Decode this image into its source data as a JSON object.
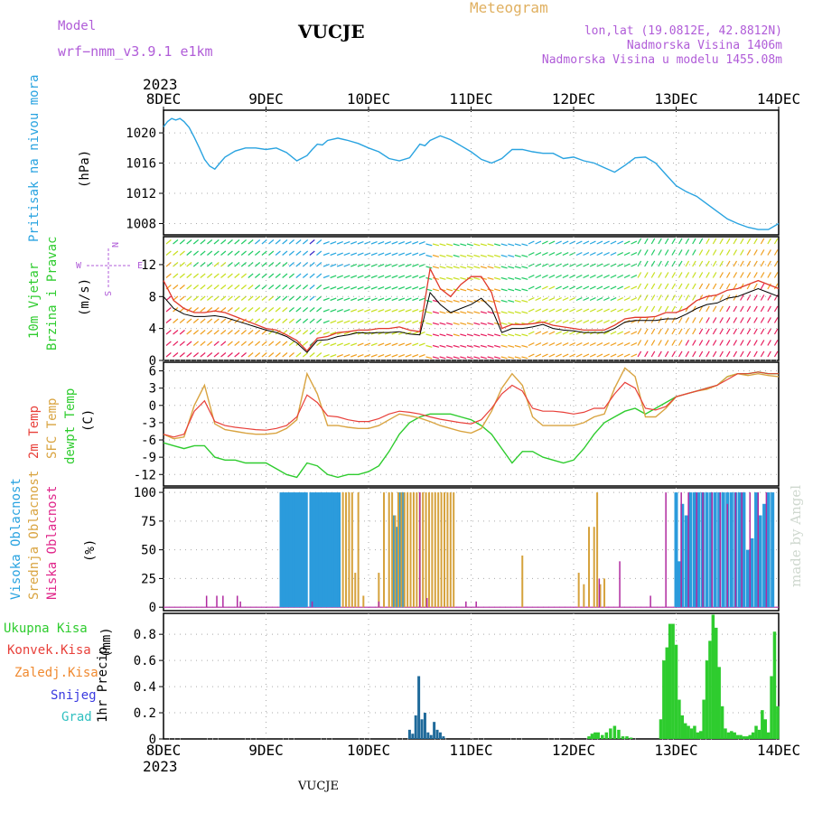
{
  "header": {
    "model_label": "Model",
    "model_name": "wrf−nmm_v3.9.1  e1km",
    "station": "VUCJE",
    "product": "Meteogram",
    "coords": "lon,lat (19.0812E, 42.8812N)",
    "altitude": "Nadmorska Visina 1406m",
    "model_altitude": "Nadmorska Visina u modelu 1455.08m",
    "footer_station": "VUCJE",
    "watermark": "made by Angel"
  },
  "time_axis": {
    "year": "2023",
    "ticks": [
      "8DEC",
      "9DEC",
      "10DEC",
      "11DEC",
      "12DEC",
      "13DEC",
      "14DEC"
    ]
  },
  "colors": {
    "pressure": "#29a3e0",
    "wind_speed": "#000000",
    "wind_gust": "#e0382b",
    "temp2m": "#e8403a",
    "sfc_temp": "#d9a441",
    "dewpoint": "#2ecc2e",
    "cloud_high": "#2b9bdc",
    "cloud_mid": "#d6a23c",
    "cloud_low": "#b02aa0",
    "precip_total": "#2ecc2e",
    "precip_conv": "#e8403a",
    "precip_frz": "#f08a30",
    "snow": "#3a3ae0",
    "graupel": "#30c0c0",
    "precip_dark": "#1f6a9a"
  },
  "chart_data": [
    {
      "type": "line",
      "panel": "pressure",
      "ylabel": "Pritisak na nivou mora",
      "unit": "(hPa)",
      "yticks": [
        1008,
        1012,
        1016,
        1020
      ],
      "ylim": [
        1006.5,
        1023
      ],
      "x_days": [
        0,
        0.04,
        0.08,
        0.12,
        0.16,
        0.2,
        0.25,
        0.3,
        0.35,
        0.4,
        0.45,
        0.5,
        0.55,
        0.6,
        0.7,
        0.8,
        0.9,
        1.0,
        1.1,
        1.2,
        1.3,
        1.4,
        1.45,
        1.5,
        1.55,
        1.6,
        1.7,
        1.8,
        1.9,
        2.0,
        2.1,
        2.2,
        2.3,
        2.4,
        2.5,
        2.55,
        2.6,
        2.7,
        2.8,
        2.9,
        3.0,
        3.05,
        3.1,
        3.2,
        3.3,
        3.4,
        3.5,
        3.6,
        3.7,
        3.8,
        3.9,
        4.0,
        4.1,
        4.2,
        4.3,
        4.4,
        4.5,
        4.6,
        4.7,
        4.8,
        4.9,
        5.0,
        5.1,
        5.2,
        5.3,
        5.4,
        5.5,
        5.6,
        5.7,
        5.8,
        5.9,
        6.0
      ],
      "values": [
        1020.8,
        1021.5,
        1021.9,
        1021.7,
        1021.9,
        1021.5,
        1020.7,
        1019.4,
        1018.0,
        1016.5,
        1015.6,
        1015.2,
        1016.0,
        1016.8,
        1017.6,
        1018.0,
        1018.0,
        1017.8,
        1018.0,
        1017.4,
        1016.3,
        1017.0,
        1017.8,
        1018.5,
        1018.4,
        1019.0,
        1019.3,
        1019.0,
        1018.6,
        1018.0,
        1017.5,
        1016.6,
        1016.3,
        1016.7,
        1018.5,
        1018.3,
        1019.0,
        1019.6,
        1019.1,
        1018.3,
        1017.5,
        1017.0,
        1016.5,
        1016.0,
        1016.6,
        1017.8,
        1017.8,
        1017.5,
        1017.3,
        1017.3,
        1016.6,
        1016.8,
        1016.3,
        1016.0,
        1015.4,
        1014.8,
        1015.7,
        1016.7,
        1016.8,
        1016.0,
        1014.5,
        1013.0,
        1012.2,
        1011.6,
        1010.6,
        1009.6,
        1008.6,
        1008.0,
        1007.5,
        1007.2,
        1007.2,
        1008.0
      ]
    },
    {
      "type": "line",
      "panel": "wind",
      "ylabel_line1": "10m Vjetar",
      "ylabel_line2": "Brzina i Pravac",
      "unit": "(m/s)",
      "compass": [
        "N",
        "E",
        "W",
        "S"
      ],
      "yticks": [
        0,
        4,
        8,
        12
      ],
      "ylim": [
        0,
        15.5
      ],
      "x_days": [
        0,
        0.1,
        0.2,
        0.3,
        0.4,
        0.5,
        0.6,
        0.7,
        0.8,
        0.9,
        1.0,
        1.1,
        1.2,
        1.3,
        1.4,
        1.5,
        1.6,
        1.7,
        1.8,
        1.9,
        2.0,
        2.1,
        2.2,
        2.3,
        2.4,
        2.5,
        2.6,
        2.7,
        2.8,
        2.9,
        3.0,
        3.1,
        3.2,
        3.3,
        3.4,
        3.5,
        3.6,
        3.7,
        3.8,
        3.9,
        4.0,
        4.1,
        4.2,
        4.3,
        4.4,
        4.5,
        4.6,
        4.7,
        4.8,
        4.9,
        5.0,
        5.1,
        5.2,
        5.3,
        5.4,
        5.5,
        5.6,
        5.7,
        5.8,
        5.9,
        6.0
      ],
      "series": [
        {
          "name": "speed",
          "values": [
            8.0,
            6.5,
            5.8,
            5.5,
            5.5,
            5.6,
            5.4,
            5.0,
            4.6,
            4.2,
            3.8,
            3.5,
            3.0,
            2.2,
            1.0,
            2.5,
            2.6,
            3.0,
            3.2,
            3.5,
            3.4,
            3.5,
            3.5,
            3.6,
            3.3,
            3.2,
            8.5,
            7.0,
            6.0,
            6.5,
            7.0,
            7.8,
            6.5,
            3.5,
            4.0,
            4.0,
            4.2,
            4.5,
            4.0,
            3.8,
            3.7,
            3.5,
            3.5,
            3.5,
            4.0,
            4.8,
            5.0,
            5.0,
            5.0,
            5.2,
            5.2,
            5.8,
            6.5,
            7.0,
            7.2,
            7.8,
            8.0,
            8.5,
            9.0,
            8.5,
            8.0
          ]
        },
        {
          "name": "gust",
          "values": [
            10.0,
            7.5,
            6.5,
            6.0,
            6.0,
            6.2,
            6.0,
            5.5,
            5.0,
            4.5,
            4.0,
            3.8,
            3.2,
            2.5,
            1.2,
            2.8,
            3.0,
            3.5,
            3.6,
            3.8,
            3.8,
            4.0,
            4.0,
            4.2,
            3.8,
            3.6,
            11.5,
            9.0,
            8.0,
            9.5,
            10.5,
            10.5,
            8.5,
            4.0,
            4.5,
            4.5,
            4.6,
            4.8,
            4.4,
            4.2,
            4.0,
            3.8,
            3.8,
            3.8,
            4.4,
            5.2,
            5.4,
            5.4,
            5.5,
            6.0,
            6.0,
            6.5,
            7.5,
            8.0,
            8.2,
            8.8,
            9.0,
            9.5,
            10.0,
            9.5,
            9.0
          ]
        }
      ]
    },
    {
      "type": "line",
      "panel": "temperature",
      "ylabel_line1": "2m Temp",
      "ylabel_line2": "SFC Temp",
      "ylabel_line3": "dewpt Temp",
      "unit": "(C)",
      "yticks": [
        -12,
        -9,
        -6,
        -3,
        0,
        3,
        6
      ],
      "ylim": [
        -14,
        7.5
      ],
      "x_days": [
        0,
        0.1,
        0.2,
        0.3,
        0.4,
        0.5,
        0.6,
        0.7,
        0.8,
        0.9,
        1.0,
        1.1,
        1.2,
        1.3,
        1.4,
        1.5,
        1.6,
        1.7,
        1.8,
        1.9,
        2.0,
        2.1,
        2.2,
        2.3,
        2.4,
        2.5,
        2.6,
        2.7,
        2.8,
        2.9,
        3.0,
        3.1,
        3.2,
        3.3,
        3.4,
        3.5,
        3.6,
        3.7,
        3.8,
        3.9,
        4.0,
        4.1,
        4.2,
        4.3,
        4.4,
        4.5,
        4.6,
        4.7,
        4.8,
        4.9,
        5.0,
        5.1,
        5.2,
        5.3,
        5.4,
        5.5,
        5.6,
        5.7,
        5.8,
        5.9,
        6.0
      ],
      "series": [
        {
          "name": "2m",
          "values": [
            -5.0,
            -5.5,
            -5.0,
            -1.0,
            0.8,
            -2.8,
            -3.5,
            -3.8,
            -4.0,
            -4.2,
            -4.3,
            -4.0,
            -3.5,
            -2.0,
            1.8,
            0.5,
            -1.8,
            -2.0,
            -2.5,
            -2.8,
            -2.8,
            -2.3,
            -1.5,
            -1.0,
            -1.2,
            -1.5,
            -2.0,
            -2.4,
            -2.7,
            -3.0,
            -3.2,
            -2.5,
            -0.5,
            2.0,
            3.5,
            2.5,
            -0.5,
            -1.0,
            -1.0,
            -1.2,
            -1.5,
            -1.2,
            -0.5,
            -0.5,
            2.0,
            4.0,
            3.0,
            -0.5,
            -0.8,
            -0.2,
            1.5,
            2.0,
            2.5,
            3.0,
            3.5,
            4.5,
            5.5,
            5.5,
            5.8,
            5.5,
            5.5
          ]
        },
        {
          "name": "sfc",
          "values": [
            -5.0,
            -5.8,
            -5.5,
            0.0,
            3.5,
            -3.2,
            -4.2,
            -4.5,
            -4.8,
            -5.0,
            -5.0,
            -4.8,
            -4.0,
            -2.5,
            5.5,
            2.0,
            -3.5,
            -3.5,
            -3.8,
            -4.0,
            -4.0,
            -3.5,
            -2.5,
            -1.5,
            -1.8,
            -2.2,
            -2.8,
            -3.5,
            -4.0,
            -4.5,
            -4.8,
            -4.0,
            -1.0,
            3.0,
            5.5,
            3.5,
            -2.0,
            -3.5,
            -3.5,
            -3.5,
            -3.5,
            -3.0,
            -2.0,
            -1.5,
            3.0,
            6.5,
            5.0,
            -2.0,
            -2.0,
            -0.5,
            1.5,
            2.0,
            2.5,
            2.8,
            3.5,
            5.0,
            5.5,
            5.2,
            5.5,
            5.2,
            5.0
          ]
        },
        {
          "name": "dewpt",
          "values": [
            -6.5,
            -7.0,
            -7.5,
            -7.0,
            -7.0,
            -9.0,
            -9.5,
            -9.5,
            -10.0,
            -10.0,
            -10.0,
            -11.0,
            -12.0,
            -12.5,
            -10.0,
            -10.5,
            -12.0,
            -12.5,
            -12.0,
            -12.0,
            -11.5,
            -10.5,
            -8.0,
            -5.0,
            -3.0,
            -2.0,
            -1.5,
            -1.5,
            -1.5,
            -2.0,
            -2.5,
            -3.5,
            -5.0,
            -7.5,
            -10.0,
            -8.0,
            -8.0,
            -9.0,
            -9.5,
            -10.0,
            -9.5,
            -7.5,
            -5.0,
            -3.0,
            -2.0,
            -1.0,
            -0.5,
            -1.5,
            -0.5,
            0.5,
            1.5,
            2.0,
            2.5,
            3.0,
            3.5,
            5.0,
            5.5,
            5.5,
            5.8,
            5.5,
            5.5
          ]
        }
      ]
    },
    {
      "type": "bar",
      "panel": "cloud",
      "ylabel_line1": "Visoka Oblacnost",
      "ylabel_line2": "Srednja Oblacnost",
      "ylabel_line3": "Niska Oblacnost",
      "unit": "(%)",
      "yticks": [
        0,
        25,
        50,
        75,
        100
      ],
      "ylim": [
        -3,
        104
      ],
      "high_days": [
        1.15,
        1.18,
        1.21,
        1.24,
        1.27,
        1.3,
        1.33,
        1.36,
        1.39,
        1.44,
        1.47,
        1.5,
        1.53,
        1.56,
        1.59,
        1.62,
        1.65,
        1.68,
        1.71,
        2.25,
        2.28,
        2.31,
        2.34,
        5.0,
        5.03,
        5.06,
        5.1,
        5.14,
        5.18,
        5.22,
        5.26,
        5.3,
        5.34,
        5.38,
        5.42,
        5.46,
        5.5,
        5.54,
        5.58,
        5.62,
        5.66,
        5.7,
        5.74,
        5.78,
        5.82,
        5.86,
        5.9,
        5.94
      ],
      "high_values": [
        100,
        100,
        100,
        100,
        100,
        100,
        100,
        100,
        100,
        100,
        100,
        100,
        100,
        100,
        100,
        100,
        100,
        100,
        100,
        80,
        70,
        100,
        100,
        100,
        40,
        90,
        80,
        100,
        100,
        100,
        100,
        100,
        100,
        100,
        100,
        100,
        100,
        100,
        100,
        100,
        100,
        50,
        60,
        100,
        80,
        90,
        100,
        100
      ],
      "mid_days": [
        1.75,
        1.78,
        1.81,
        1.84,
        1.87,
        1.9,
        1.95,
        2.1,
        2.15,
        2.2,
        2.23,
        2.26,
        2.29,
        2.32,
        2.35,
        2.38,
        2.41,
        2.44,
        2.47,
        2.5,
        2.53,
        2.56,
        2.59,
        2.62,
        2.65,
        2.68,
        2.71,
        2.74,
        2.77,
        2.8,
        2.83,
        3.5,
        4.05,
        4.1,
        4.15,
        4.2,
        4.23,
        4.26,
        4.3
      ],
      "mid_values": [
        100,
        100,
        100,
        100,
        30,
        100,
        10,
        30,
        100,
        100,
        100,
        80,
        100,
        100,
        100,
        100,
        100,
        100,
        100,
        100,
        100,
        100,
        100,
        100,
        100,
        100,
        100,
        100,
        100,
        100,
        100,
        45,
        30,
        20,
        70,
        70,
        100,
        20,
        25
      ],
      "low_days": [
        0.42,
        0.52,
        0.58,
        0.72,
        0.75,
        1.45,
        2.1,
        2.5,
        2.57,
        2.95,
        3.05,
        4.25,
        4.45,
        4.75,
        4.9,
        5.05,
        5.12,
        5.2,
        5.26,
        5.35,
        5.43,
        5.5,
        5.58,
        5.64,
        5.72,
        5.8,
        5.88
      ],
      "low_values": [
        10,
        10,
        10,
        10,
        5,
        5,
        5,
        100,
        8,
        5,
        5,
        25,
        40,
        10,
        100,
        100,
        100,
        100,
        100,
        100,
        100,
        90,
        100,
        100,
        100,
        100,
        100
      ]
    },
    {
      "type": "bar",
      "panel": "precip",
      "ylabel": "1hr Precip",
      "unit": "(mm)",
      "legend": [
        "Ukupna Kisa",
        "Konvek.Kisa",
        "Zaledj.Kisa",
        "Snijeg",
        "Grad"
      ],
      "yticks": [
        0,
        0.2,
        0.4,
        0.6,
        0.8
      ],
      "ylim": [
        0,
        0.96
      ],
      "dark_days": [
        2.4,
        2.43,
        2.46,
        2.49,
        2.52,
        2.55,
        2.58,
        2.61,
        2.64,
        2.67,
        2.7,
        2.73
      ],
      "dark_values": [
        0.07,
        0.04,
        0.18,
        0.48,
        0.15,
        0.2,
        0.05,
        0.03,
        0.13,
        0.07,
        0.05,
        0.02
      ],
      "green_days": [
        4.15,
        4.18,
        4.21,
        4.24,
        4.28,
        4.32,
        4.36,
        4.4,
        4.44,
        4.48,
        4.52,
        4.56,
        4.85,
        4.88,
        4.91,
        4.94,
        4.97,
        5.0,
        5.03,
        5.06,
        5.09,
        5.12,
        5.15,
        5.18,
        5.21,
        5.24,
        5.27,
        5.3,
        5.33,
        5.36,
        5.39,
        5.42,
        5.45,
        5.48,
        5.51,
        5.54,
        5.57,
        5.6,
        5.63,
        5.66,
        5.69,
        5.72,
        5.75,
        5.78,
        5.81,
        5.84,
        5.87,
        5.9,
        5.93,
        5.96,
        5.99
      ],
      "green_values": [
        0.02,
        0.04,
        0.05,
        0.05,
        0.03,
        0.05,
        0.08,
        0.1,
        0.07,
        0.02,
        0.02,
        0.01,
        0.15,
        0.6,
        0.7,
        0.88,
        0.88,
        0.72,
        0.3,
        0.18,
        0.12,
        0.1,
        0.08,
        0.1,
        0.05,
        0.06,
        0.3,
        0.6,
        0.75,
        0.95,
        0.85,
        0.55,
        0.25,
        0.08,
        0.05,
        0.06,
        0.05,
        0.03,
        0.03,
        0.02,
        0.02,
        0.03,
        0.05,
        0.1,
        0.07,
        0.22,
        0.15,
        0.05,
        0.48,
        0.82,
        0.25
      ]
    }
  ]
}
